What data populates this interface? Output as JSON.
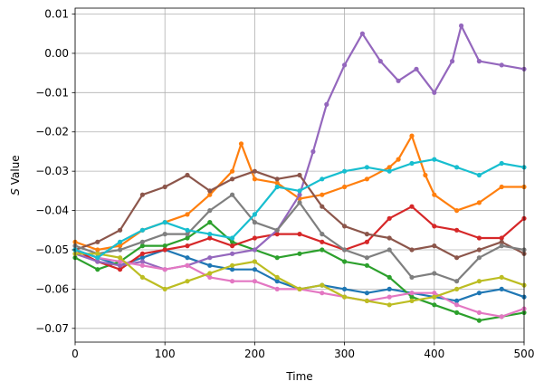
{
  "chart_data": {
    "type": "line",
    "xlabel": "Time",
    "ylabel_prefix": "S",
    "ylabel_suffix": " Value",
    "xlim": [
      0,
      500
    ],
    "ylim": [
      -0.0735,
      0.0115
    ],
    "xticks": [
      0,
      100,
      200,
      300,
      400,
      500
    ],
    "xtick_labels": [
      "0",
      "100",
      "200",
      "300",
      "400",
      "500"
    ],
    "yticks": [
      -0.07,
      -0.06,
      -0.05,
      -0.04,
      -0.03,
      -0.02,
      -0.01,
      0.0,
      0.01
    ],
    "ytick_labels": [
      "−0.07",
      "−0.06",
      "−0.05",
      "−0.04",
      "−0.03",
      "−0.02",
      "−0.01",
      "0.00",
      "0.01"
    ],
    "grid": true,
    "marker": "dot",
    "series": [
      {
        "color": "#1f77b4",
        "x": [
          0,
          25,
          50,
          75,
          100,
          125,
          150,
          175,
          200,
          225,
          250,
          275,
          300,
          325,
          350,
          375,
          400,
          425,
          450,
          475,
          500
        ],
        "values": [
          -0.05,
          -0.052,
          -0.054,
          -0.052,
          -0.05,
          -0.052,
          -0.054,
          -0.055,
          -0.055,
          -0.058,
          -0.06,
          -0.059,
          -0.06,
          -0.061,
          -0.06,
          -0.061,
          -0.062,
          -0.063,
          -0.061,
          -0.06,
          -0.062
        ]
      },
      {
        "color": "#ff7f0e",
        "x": [
          0,
          25,
          50,
          75,
          100,
          125,
          150,
          175,
          185,
          200,
          225,
          250,
          275,
          300,
          325,
          350,
          360,
          375,
          390,
          400,
          425,
          450,
          475,
          500
        ],
        "values": [
          -0.048,
          -0.05,
          -0.049,
          -0.045,
          -0.043,
          -0.041,
          -0.036,
          -0.03,
          -0.023,
          -0.032,
          -0.033,
          -0.037,
          -0.036,
          -0.034,
          -0.032,
          -0.029,
          -0.027,
          -0.021,
          -0.031,
          -0.036,
          -0.04,
          -0.038,
          -0.034,
          -0.034
        ]
      },
      {
        "color": "#2ca02c",
        "x": [
          0,
          25,
          50,
          75,
          100,
          125,
          150,
          175,
          200,
          225,
          250,
          275,
          300,
          325,
          350,
          375,
          400,
          425,
          450,
          475,
          500
        ],
        "values": [
          -0.052,
          -0.055,
          -0.053,
          -0.049,
          -0.049,
          -0.047,
          -0.043,
          -0.048,
          -0.05,
          -0.052,
          -0.051,
          -0.05,
          -0.053,
          -0.054,
          -0.057,
          -0.062,
          -0.064,
          -0.066,
          -0.068,
          -0.067,
          -0.066
        ]
      },
      {
        "color": "#d62728",
        "x": [
          0,
          25,
          50,
          75,
          100,
          125,
          150,
          175,
          200,
          225,
          250,
          275,
          300,
          325,
          350,
          375,
          400,
          425,
          450,
          475,
          500
        ],
        "values": [
          -0.05,
          -0.053,
          -0.055,
          -0.051,
          -0.05,
          -0.049,
          -0.047,
          -0.049,
          -0.047,
          -0.046,
          -0.046,
          -0.048,
          -0.05,
          -0.048,
          -0.042,
          -0.039,
          -0.044,
          -0.045,
          -0.047,
          -0.047,
          -0.042
        ]
      },
      {
        "color": "#9467bd",
        "x": [
          0,
          25,
          50,
          75,
          100,
          125,
          150,
          175,
          200,
          225,
          250,
          265,
          280,
          300,
          320,
          340,
          360,
          380,
          400,
          420,
          430,
          450,
          475,
          500
        ],
        "values": [
          -0.051,
          -0.053,
          -0.054,
          -0.053,
          -0.055,
          -0.054,
          -0.052,
          -0.051,
          -0.05,
          -0.045,
          -0.036,
          -0.025,
          -0.013,
          -0.003,
          0.005,
          -0.002,
          -0.007,
          -0.004,
          -0.01,
          -0.002,
          0.007,
          -0.002,
          -0.003,
          -0.004
        ]
      },
      {
        "color": "#8c564b",
        "x": [
          0,
          25,
          50,
          75,
          100,
          125,
          150,
          175,
          200,
          225,
          250,
          275,
          300,
          325,
          350,
          375,
          400,
          425,
          450,
          475,
          500
        ],
        "values": [
          -0.05,
          -0.048,
          -0.045,
          -0.036,
          -0.034,
          -0.031,
          -0.035,
          -0.032,
          -0.03,
          -0.032,
          -0.031,
          -0.039,
          -0.044,
          -0.046,
          -0.047,
          -0.05,
          -0.049,
          -0.052,
          -0.05,
          -0.048,
          -0.051
        ]
      },
      {
        "color": "#e377c2",
        "x": [
          0,
          25,
          50,
          75,
          100,
          125,
          150,
          175,
          200,
          225,
          250,
          275,
          300,
          325,
          350,
          375,
          400,
          425,
          450,
          475,
          500
        ],
        "values": [
          -0.05,
          -0.052,
          -0.053,
          -0.054,
          -0.055,
          -0.054,
          -0.057,
          -0.058,
          -0.058,
          -0.06,
          -0.06,
          -0.061,
          -0.062,
          -0.063,
          -0.062,
          -0.061,
          -0.061,
          -0.064,
          -0.066,
          -0.067,
          -0.065
        ]
      },
      {
        "color": "#7f7f7f",
        "x": [
          0,
          25,
          50,
          75,
          100,
          125,
          150,
          175,
          200,
          225,
          250,
          275,
          300,
          325,
          350,
          375,
          400,
          425,
          450,
          475,
          500
        ],
        "values": [
          -0.049,
          -0.051,
          -0.05,
          -0.048,
          -0.046,
          -0.046,
          -0.04,
          -0.036,
          -0.043,
          -0.045,
          -0.038,
          -0.046,
          -0.05,
          -0.052,
          -0.05,
          -0.057,
          -0.056,
          -0.058,
          -0.052,
          -0.049,
          -0.05
        ]
      },
      {
        "color": "#bcbd22",
        "x": [
          0,
          25,
          50,
          75,
          100,
          125,
          150,
          175,
          200,
          225,
          250,
          275,
          300,
          325,
          350,
          375,
          400,
          425,
          450,
          475,
          500
        ],
        "values": [
          -0.051,
          -0.051,
          -0.052,
          -0.057,
          -0.06,
          -0.058,
          -0.056,
          -0.054,
          -0.053,
          -0.057,
          -0.06,
          -0.059,
          -0.062,
          -0.063,
          -0.064,
          -0.063,
          -0.062,
          -0.06,
          -0.058,
          -0.057,
          -0.059
        ]
      },
      {
        "color": "#17becf",
        "x": [
          0,
          25,
          50,
          75,
          100,
          125,
          150,
          175,
          200,
          225,
          250,
          275,
          300,
          325,
          350,
          375,
          400,
          425,
          450,
          475,
          500
        ],
        "values": [
          -0.05,
          -0.052,
          -0.048,
          -0.045,
          -0.043,
          -0.045,
          -0.046,
          -0.047,
          -0.041,
          -0.034,
          -0.035,
          -0.032,
          -0.03,
          -0.029,
          -0.03,
          -0.028,
          -0.027,
          -0.029,
          -0.031,
          -0.028,
          -0.029
        ]
      }
    ]
  }
}
